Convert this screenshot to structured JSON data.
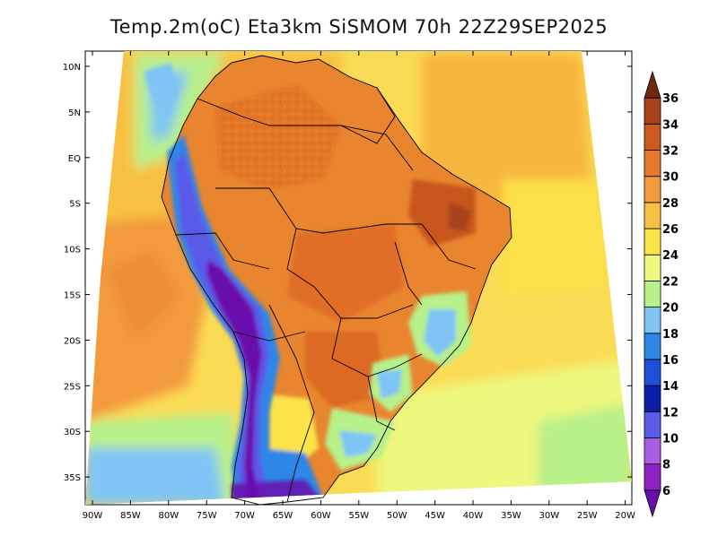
{
  "title": "Temp.2m(oC) Eta3km SiSMOM 70h 22Z29SEP2025",
  "map": {
    "lat_labels": [
      "10N",
      "5N",
      "EQ",
      "5S",
      "10S",
      "15S",
      "20S",
      "25S",
      "30S",
      "35S"
    ],
    "lon_labels": [
      "90W",
      "85W",
      "80W",
      "75W",
      "70W",
      "65W",
      "60W",
      "55W",
      "50W",
      "45W",
      "40W",
      "35W",
      "30W",
      "25W",
      "20W"
    ],
    "lon_range": [
      -91,
      -19
    ],
    "lat_range": [
      -38,
      11
    ]
  },
  "colorbar": {
    "labels": [
      "6",
      "8",
      "10",
      "12",
      "14",
      "16",
      "18",
      "20",
      "22",
      "24",
      "26",
      "28",
      "30",
      "32",
      "34",
      "36"
    ],
    "colors": [
      "#6a0dad",
      "#8e24c4",
      "#a95de0",
      "#5a5ae8",
      "#0b1fa8",
      "#1d4fd8",
      "#2f86e6",
      "#7fc4f4",
      "#b8f08a",
      "#eef77e",
      "#fbe34a",
      "#f8c043",
      "#f29a3c",
      "#e8772e",
      "#cf5a20",
      "#a8431a",
      "#6e2a10"
    ]
  }
}
